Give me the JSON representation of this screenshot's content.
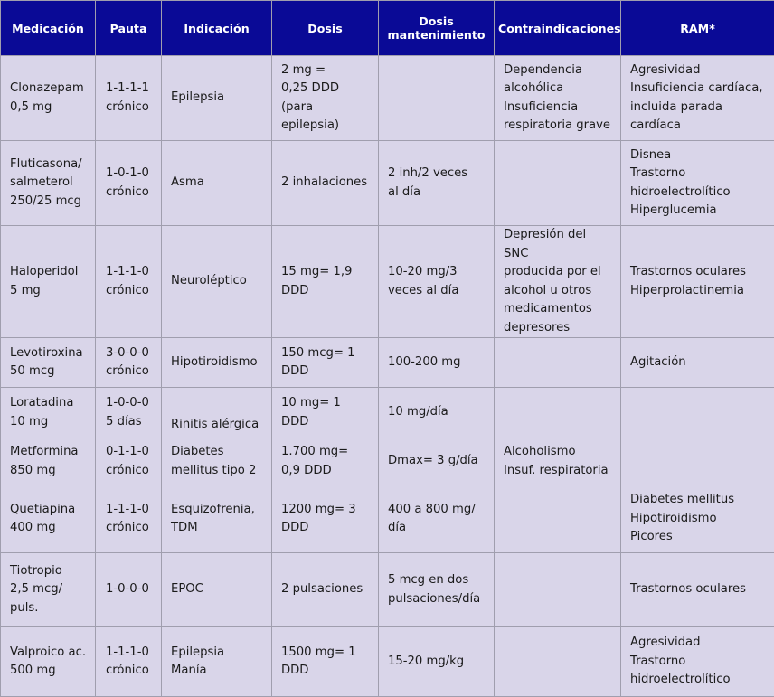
{
  "colors": {
    "header_bg": "#0a0a96",
    "header_text": "#ffffff",
    "cell_bg": "#d9d5e9",
    "border": "#a09eae"
  },
  "table": {
    "headers": [
      "Medicación",
      "Pauta",
      "Indicación",
      "Dosis",
      "Dosis\nmantenimiento",
      "Contraindicaciones",
      "RAM*"
    ],
    "rows": [
      {
        "medicacion": "Clonazepam\n0,5 mg",
        "pauta": "1-1-1-1\ncrónico",
        "indicacion": "Epilepsia",
        "dosis": "2 mg =\n0,25 DDD\n(para epilepsia)",
        "dosis_mantenimiento": "",
        "contraindicaciones": "Dependencia\nalcohólica\nInsuficiencia\nrespiratoria grave",
        "ram": "Agresividad\nInsuficiencia cardíaca,\nincluida parada cardíaca"
      },
      {
        "medicacion": "Fluticasona/\nsalmeterol\n250/25 mcg",
        "pauta": "1-0-1-0\ncrónico",
        "indicacion": "Asma",
        "dosis": "2 inhalaciones",
        "dosis_mantenimiento": "2 inh/2 veces\nal día",
        "contraindicaciones": "",
        "ram": "Disnea\nTrastorno\nhidroelectrolítico\nHiperglucemia"
      },
      {
        "medicacion": "Haloperidol\n5 mg",
        "pauta": "1-1-1-0\ncrónico",
        "indicacion": "Neuroléptico",
        "dosis": "15 mg= 1,9\nDDD",
        "dosis_mantenimiento": "10-20 mg/3\nveces al día",
        "contraindicaciones": "Depresión del SNC\nproducida por el\nalcohol u otros\nmedicamentos\ndepresores",
        "ram": "Trastornos oculares\nHiperprolactinemia"
      },
      {
        "medicacion": "Levotiroxina\n50 mcg",
        "pauta": "3-0-0-0\ncrónico",
        "indicacion": "Hipotiroidismo",
        "dosis": "150 mcg= 1\nDDD",
        "dosis_mantenimiento": "100-200 mg",
        "contraindicaciones": "",
        "ram": "Agitación"
      },
      {
        "medicacion": "Loratadina\n10 mg",
        "pauta": "1-0-0-0\n5 días",
        "indicacion": "Rinitis alérgica",
        "dosis": "10 mg= 1\nDDD",
        "dosis_mantenimiento": "10 mg/día",
        "contraindicaciones": "",
        "ram": ""
      },
      {
        "medicacion": "Metformina\n850 mg",
        "pauta": "0-1-1-0\ncrónico",
        "indicacion": "Diabetes\nmellitus tipo 2",
        "dosis": "1.700 mg=\n0,9 DDD",
        "dosis_mantenimiento": "Dmax= 3 g/día",
        "contraindicaciones": "Alcoholismo\nInsuf. respiratoria",
        "ram": ""
      },
      {
        "medicacion": "Quetiapina\n400 mg",
        "pauta": "1-1-1-0\ncrónico",
        "indicacion": "Esquizofrenia,\nTDM",
        "dosis": "1200 mg= 3\nDDD",
        "dosis_mantenimiento": "400 a 800 mg/\ndía",
        "contraindicaciones": "",
        "ram": "Diabetes mellitus\nHipotiroidismo\nPicores"
      },
      {
        "medicacion": "Tiotropio\n2,5 mcg/\npuls.",
        "pauta": "1-0-0-0",
        "indicacion": "EPOC",
        "dosis": "2 pulsaciones",
        "dosis_mantenimiento": "5 mcg en dos\npulsaciones/día",
        "contraindicaciones": "",
        "ram": "Trastornos oculares"
      },
      {
        "medicacion": "Valproico ac.\n500 mg",
        "pauta": "1-1-1-0\ncrónico",
        "indicacion": "Epilepsia\nManía",
        "dosis": "1500 mg= 1\nDDD",
        "dosis_mantenimiento": "15-20 mg/kg",
        "contraindicaciones": "",
        "ram": "Agresividad\nTrastorno\nhidroelectrolítico"
      }
    ]
  }
}
